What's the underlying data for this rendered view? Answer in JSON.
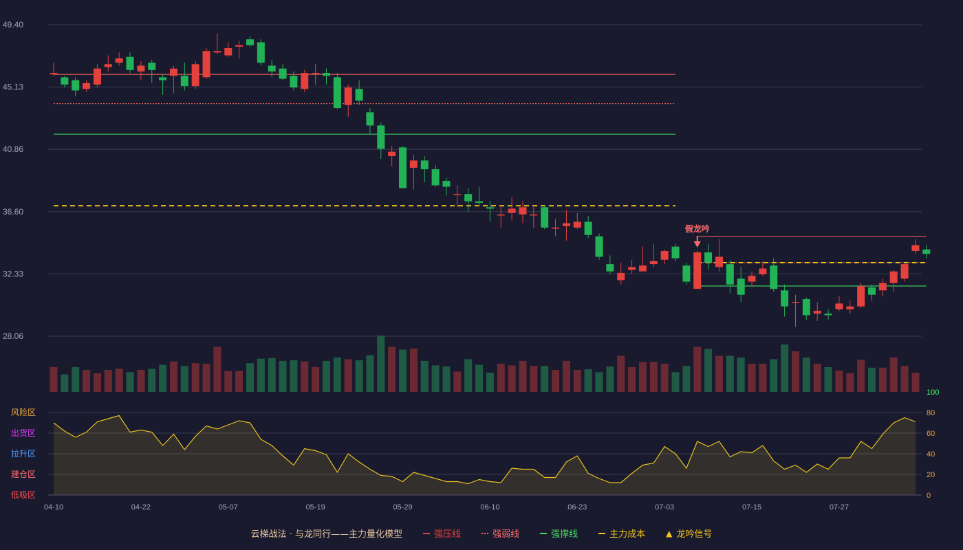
{
  "chart_data": {
    "type": "candlestick",
    "price_axis": {
      "min": 28.06,
      "max": 49.4,
      "ticks": [
        "49.40",
        "45.13",
        "40.86",
        "36.60",
        "32.33",
        "28.06"
      ]
    },
    "x_tick_labels": [
      "04-10",
      "04-22",
      "05-07",
      "05-19",
      "05-29",
      "06-10",
      "06-23",
      "07-03",
      "07-15",
      "07-27"
    ],
    "x_tick_index": [
      0,
      8,
      16,
      24,
      32,
      40,
      48,
      56,
      64,
      72
    ],
    "candles": [
      [
        46.0,
        46.1,
        46.8,
        45.9
      ],
      [
        45.8,
        45.3,
        45.9,
        45.1
      ],
      [
        45.6,
        44.9,
        45.8,
        44.5
      ],
      [
        45.0,
        45.4,
        45.6,
        44.8
      ],
      [
        45.3,
        46.4,
        46.7,
        45.1
      ],
      [
        46.5,
        46.7,
        47.3,
        46.2
      ],
      [
        46.8,
        47.1,
        47.5,
        46.6
      ],
      [
        47.2,
        46.3,
        47.5,
        46.1
      ],
      [
        46.2,
        46.6,
        46.9,
        45.6
      ],
      [
        46.8,
        46.3,
        47.0,
        45.4
      ],
      [
        45.8,
        45.6,
        46.0,
        44.6
      ],
      [
        45.9,
        46.4,
        46.6,
        44.7
      ],
      [
        45.9,
        45.2,
        46.8,
        44.9
      ],
      [
        45.2,
        46.7,
        46.9,
        45.0
      ],
      [
        45.8,
        47.6,
        47.8,
        45.7
      ],
      [
        47.5,
        47.6,
        48.8,
        47.4
      ],
      [
        47.3,
        47.8,
        48.2,
        47.2
      ],
      [
        47.9,
        48.0,
        48.3,
        47.1
      ],
      [
        48.4,
        48.0,
        48.6,
        47.9
      ],
      [
        48.2,
        46.8,
        48.4,
        46.6
      ],
      [
        46.6,
        46.2,
        47.0,
        45.8
      ],
      [
        46.4,
        45.7,
        46.7,
        45.6
      ],
      [
        45.9,
        45.1,
        46.2,
        44.9
      ],
      [
        45.0,
        46.1,
        46.3,
        44.8
      ],
      [
        46.0,
        46.1,
        46.7,
        45.3
      ],
      [
        46.1,
        45.9,
        46.4,
        45.3
      ],
      [
        45.8,
        43.7,
        46.1,
        43.6
      ],
      [
        43.9,
        45.1,
        45.3,
        43.1
      ],
      [
        45.0,
        44.2,
        45.6,
        43.9
      ],
      [
        43.4,
        42.5,
        43.7,
        41.9
      ],
      [
        42.5,
        40.9,
        42.7,
        40.2
      ],
      [
        40.4,
        40.7,
        41.1,
        39.7
      ],
      [
        41.0,
        38.2,
        41.1,
        38.2
      ],
      [
        39.6,
        40.1,
        40.5,
        38.1
      ],
      [
        40.1,
        39.5,
        40.4,
        38.6
      ],
      [
        39.5,
        38.4,
        39.8,
        38.3
      ],
      [
        38.7,
        38.3,
        38.9,
        37.7
      ],
      [
        37.8,
        37.8,
        38.4,
        36.9
      ],
      [
        37.8,
        37.3,
        38.2,
        36.6
      ],
      [
        37.3,
        37.2,
        38.3,
        37.0
      ],
      [
        36.9,
        36.8,
        37.3,
        35.9
      ],
      [
        36.4,
        36.4,
        37.0,
        35.5
      ],
      [
        36.5,
        36.8,
        37.6,
        36.0
      ],
      [
        36.4,
        36.9,
        37.3,
        35.8
      ],
      [
        36.4,
        36.4,
        36.9,
        35.5
      ],
      [
        36.9,
        35.5,
        37.0,
        35.4
      ],
      [
        35.5,
        35.5,
        36.1,
        34.9
      ],
      [
        35.6,
        35.8,
        36.7,
        34.6
      ],
      [
        35.5,
        35.9,
        36.5,
        35.4
      ],
      [
        35.9,
        35.0,
        36.3,
        34.8
      ],
      [
        34.9,
        33.5,
        35.1,
        33.3
      ],
      [
        33.0,
        32.5,
        33.6,
        32.3
      ],
      [
        31.9,
        32.4,
        33.1,
        31.6
      ],
      [
        32.6,
        32.8,
        33.3,
        32.3
      ],
      [
        32.5,
        32.9,
        34.2,
        32.5
      ],
      [
        33.0,
        33.2,
        34.4,
        32.8
      ],
      [
        33.3,
        33.9,
        34.0,
        33.0
      ],
      [
        34.2,
        33.4,
        34.4,
        33.2
      ],
      [
        32.9,
        31.8,
        33.1,
        31.6
      ],
      [
        31.3,
        33.8,
        33.9,
        31.3
      ],
      [
        33.8,
        33.1,
        34.4,
        32.6
      ],
      [
        32.8,
        33.5,
        34.7,
        32.5
      ],
      [
        33.0,
        31.6,
        33.3,
        31.0
      ],
      [
        32.0,
        30.9,
        32.8,
        30.4
      ],
      [
        31.8,
        32.2,
        32.5,
        31.5
      ],
      [
        32.3,
        32.7,
        33.2,
        32.2
      ],
      [
        32.9,
        31.3,
        33.4,
        31.1
      ],
      [
        31.2,
        30.1,
        31.6,
        29.4
      ],
      [
        30.4,
        30.4,
        30.9,
        28.7
      ],
      [
        30.6,
        29.5,
        30.7,
        29.2
      ],
      [
        29.6,
        29.8,
        30.4,
        29.1
      ],
      [
        29.6,
        29.5,
        29.9,
        29.2
      ],
      [
        29.9,
        30.3,
        30.8,
        29.8
      ],
      [
        29.9,
        30.1,
        30.5,
        29.6
      ],
      [
        30.1,
        31.5,
        31.7,
        30.0
      ],
      [
        31.4,
        30.9,
        31.6,
        30.5
      ],
      [
        31.2,
        31.7,
        32.0,
        30.8
      ],
      [
        31.7,
        32.5,
        32.6,
        31.1
      ],
      [
        32.0,
        33.0,
        33.1,
        31.8
      ],
      [
        33.9,
        34.3,
        34.7,
        33.7
      ],
      [
        34.0,
        33.7,
        34.3,
        33.4
      ]
    ],
    "volume": [
      0.44,
      0.31,
      0.44,
      0.39,
      0.33,
      0.39,
      0.41,
      0.35,
      0.39,
      0.41,
      0.48,
      0.54,
      0.46,
      0.51,
      0.5,
      0.8,
      0.37,
      0.37,
      0.51,
      0.59,
      0.6,
      0.55,
      0.56,
      0.54,
      0.44,
      0.55,
      0.61,
      0.58,
      0.56,
      0.65,
      1.0,
      0.8,
      0.75,
      0.77,
      0.55,
      0.47,
      0.45,
      0.36,
      0.58,
      0.48,
      0.34,
      0.5,
      0.47,
      0.55,
      0.46,
      0.46,
      0.39,
      0.55,
      0.39,
      0.4,
      0.35,
      0.45,
      0.64,
      0.44,
      0.53,
      0.53,
      0.5,
      0.35,
      0.46,
      0.8,
      0.76,
      0.64,
      0.64,
      0.61,
      0.5,
      0.5,
      0.58,
      0.84,
      0.72,
      0.61,
      0.5,
      0.44,
      0.38,
      0.33,
      0.57,
      0.43,
      0.43,
      0.61,
      0.46,
      0.34
    ],
    "indicator_axis": {
      "min": 0,
      "max": 100,
      "ticks": [
        "100",
        "80",
        "60",
        "40",
        "20",
        "0"
      ]
    },
    "indicator_values": [
      70,
      62,
      56,
      61,
      71,
      74,
      77,
      61,
      63,
      61,
      48,
      59,
      44,
      57,
      67,
      64,
      68,
      72,
      70,
      54,
      48,
      38,
      29,
      45,
      43,
      39,
      22,
      40,
      32,
      25,
      19,
      18,
      13,
      22,
      19,
      16,
      13,
      13,
      11,
      15,
      13,
      12,
      26,
      25,
      25,
      17,
      17,
      32,
      38,
      21,
      16,
      12,
      12,
      21,
      29,
      31,
      47,
      40,
      26,
      52,
      47,
      52,
      37,
      42,
      41,
      48,
      33,
      25,
      29,
      22,
      30,
      25,
      36,
      36,
      52,
      45,
      59,
      70,
      75,
      71
    ],
    "zone_labels": [
      "风险区",
      "出货区",
      "拉升区",
      "建仓区",
      "低吸区"
    ],
    "zone_colors": [
      "#e6a23c",
      "#e040fb",
      "#4d9cff",
      "#ff6b6b",
      "#ff4d4d"
    ],
    "lines": [
      {
        "kind": "strong-pressure",
        "value": 46.0,
        "from": 0,
        "to": 57,
        "style": "solid",
        "color": "#e35b57"
      },
      {
        "kind": "weak",
        "value": 44.0,
        "from": 0,
        "to": 57,
        "style": "dotted",
        "color": "#e35b57"
      },
      {
        "kind": "support",
        "value": 41.9,
        "from": 0,
        "to": 57,
        "style": "solid",
        "color": "#3cc85a"
      },
      {
        "kind": "cost",
        "value": 37.0,
        "from": 0,
        "to": 57,
        "style": "dashed",
        "color": "#f5c518"
      },
      {
        "kind": "strong-pressure",
        "value": 34.9,
        "from": 59,
        "to": 80,
        "style": "solid",
        "color": "#e35b57"
      },
      {
        "kind": "weak",
        "value": 33.1,
        "from": 59,
        "to": 80,
        "style": "dotted",
        "color": "#e35b57"
      },
      {
        "kind": "cost",
        "value": 33.1,
        "from": 59,
        "to": 80,
        "style": "dashed",
        "color": "#f5c518"
      },
      {
        "kind": "support",
        "value": 31.5,
        "from": 59,
        "to": 80,
        "style": "solid",
        "color": "#3cc85a"
      }
    ],
    "annotation": {
      "text": "假龙吟",
      "index": 59
    },
    "colors": {
      "up": "#e5413d",
      "down": "#22b356",
      "line": "#e8c020"
    }
  },
  "legend": {
    "title": "云梯战法 · 与龙同行——主力量化模型",
    "items": [
      {
        "label": "强压线",
        "color": "#e5413d",
        "style": "solid"
      },
      {
        "label": "强弱线",
        "color": "#ff6b6b",
        "style": "dotted"
      },
      {
        "label": "强撑线",
        "color": "#4cd964",
        "style": "solid"
      },
      {
        "label": "主力成本",
        "color": "#f5c518",
        "style": "dashed"
      },
      {
        "label": "龙吟信号",
        "color": "#f5c518",
        "style": "triangle"
      }
    ]
  }
}
